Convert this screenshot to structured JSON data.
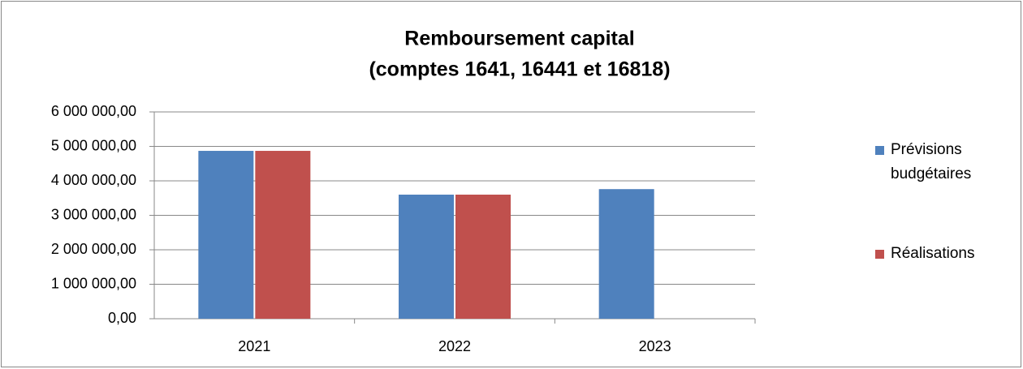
{
  "chart_data": {
    "type": "bar",
    "title": [
      "Remboursement capital",
      "(comptes 1641, 16441 et 16818)"
    ],
    "categories": [
      "2021",
      "2022",
      "2023"
    ],
    "series": [
      {
        "name": "Prévisions budgétaires",
        "color": "#4f81bd",
        "values": [
          4870000,
          3600000,
          3760000
        ]
      },
      {
        "name": "Réalisations",
        "color": "#c0504d",
        "values": [
          4870000,
          3600000,
          null
        ]
      }
    ],
    "ylim": [
      0,
      6000000
    ],
    "yticks": [
      {
        "value": 0,
        "label": "0,00"
      },
      {
        "value": 1000000,
        "label": "1 000 000,00"
      },
      {
        "value": 2000000,
        "label": "2 000 000,00"
      },
      {
        "value": 3000000,
        "label": "3 000 000,00"
      },
      {
        "value": 4000000,
        "label": "4 000 000,00"
      },
      {
        "value": 5000000,
        "label": "5 000 000,00"
      },
      {
        "value": 6000000,
        "label": "6 000 000,00"
      }
    ],
    "grid": true,
    "legend": "right"
  }
}
